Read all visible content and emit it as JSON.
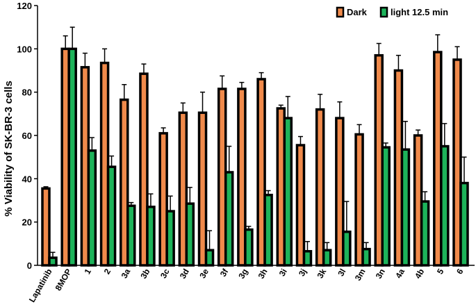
{
  "chart_data": {
    "type": "bar",
    "ylabel": "% Viability of SK-BR-3 cells",
    "xlabel": "",
    "ylim": [
      0,
      120
    ],
    "yticks": [
      0,
      20,
      40,
      60,
      80,
      100,
      120
    ],
    "grid": false,
    "legend_position": "top-right",
    "categories": [
      "Lapatinib",
      "8MOP",
      "1",
      "2",
      "3a",
      "3b",
      "3c",
      "3d",
      "3e",
      "3f",
      "3g",
      "3h",
      "3i",
      "3j",
      "3k",
      "3l",
      "3m",
      "3n",
      "4a",
      "4b",
      "5",
      "6"
    ],
    "series": [
      {
        "name": "Dark",
        "color": "#f08a4b",
        "values": [
          35.5,
          100,
          91.5,
          93.5,
          76.5,
          88.5,
          61,
          70.5,
          70.5,
          81.5,
          81.5,
          86,
          72.5,
          55.5,
          72,
          68,
          60.5,
          97,
          90,
          60,
          98.5,
          95
        ],
        "errors": [
          0.8,
          6,
          6.5,
          6.5,
          7,
          4.5,
          2.5,
          4.5,
          9.5,
          6,
          3,
          3,
          1.5,
          4,
          7,
          7.5,
          4.5,
          5.5,
          7,
          2.5,
          8,
          6
        ]
      },
      {
        "name": "light 12.5 min",
        "color": "#1db35a",
        "values": [
          3.5,
          100,
          53,
          45.5,
          27.5,
          27,
          25,
          28.5,
          7,
          43,
          16.5,
          32.5,
          68,
          6.5,
          7,
          15.5,
          7.5,
          54.5,
          53.5,
          29.5,
          55,
          38
        ],
        "errors": [
          2.5,
          10,
          6,
          5,
          1.5,
          6,
          7,
          7.5,
          9,
          12,
          1.5,
          2,
          10,
          4.5,
          3.5,
          14,
          3,
          2,
          13,
          4.5,
          10.5,
          12
        ]
      }
    ],
    "error_bar_color": "#000000"
  }
}
